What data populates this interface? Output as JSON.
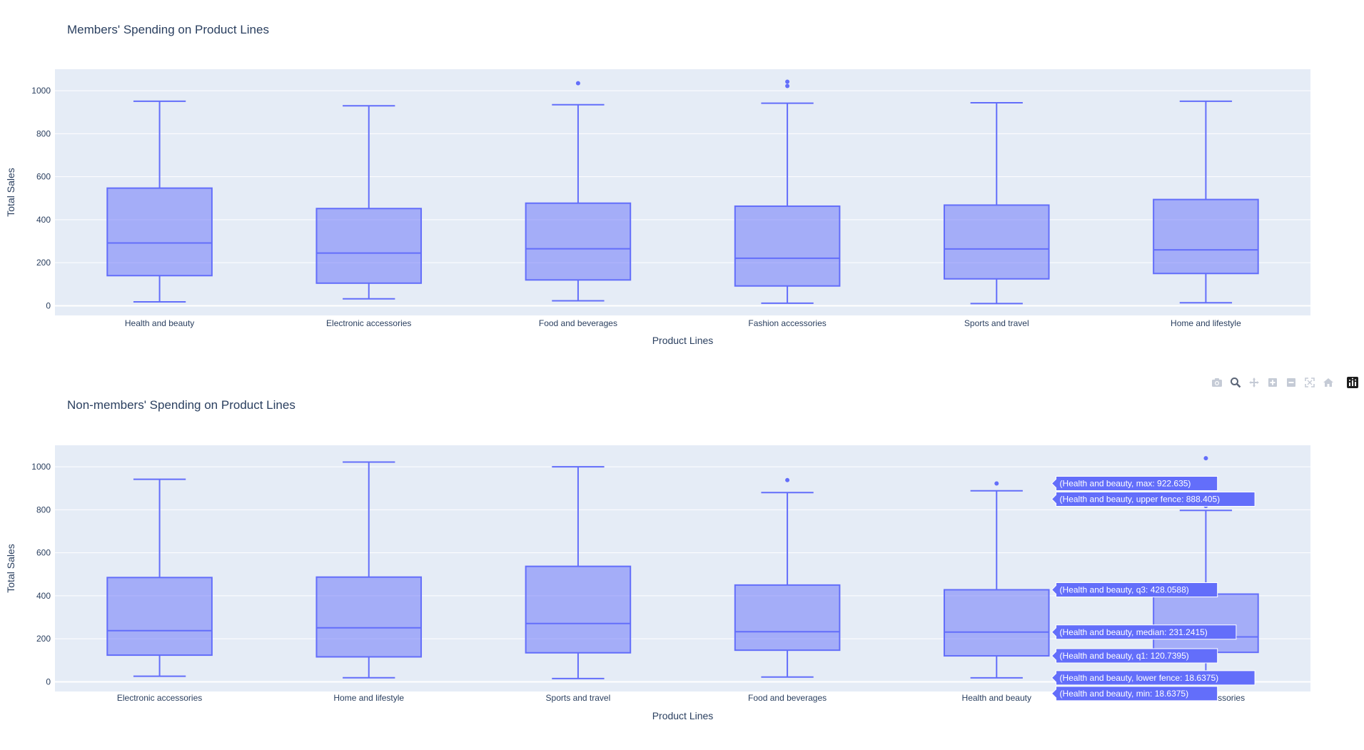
{
  "colors": {
    "box_line": "#636efa",
    "box_fill": "rgba(99,110,250,0.5)",
    "plot_bg": "#e5ecf6",
    "grid": "#ffffff",
    "text": "#2a3f5f",
    "hover_text": "#ffffff"
  },
  "toolbar": {
    "icons": [
      "camera-icon",
      "zoom-icon",
      "pan-icon",
      "zoom-in-icon",
      "zoom-out-icon",
      "autoscale-icon",
      "reset-axes-icon",
      "plotly-logo-icon"
    ]
  },
  "chart_data": [
    {
      "type": "box",
      "title": "Members' Spending on Product Lines",
      "xlabel": "Product Lines",
      "ylabel": "Total Sales",
      "ylim": [
        -45,
        1100
      ],
      "yticks": [
        0,
        200,
        400,
        600,
        800,
        1000
      ],
      "grid": true,
      "categories": [
        "Health and beauty",
        "Electronic accessories",
        "Food and beverages",
        "Fashion accessories",
        "Sports and travel",
        "Home and lifestyle"
      ],
      "boxes": [
        {
          "category": "Health and beauty",
          "min": 18,
          "q1": 140,
          "median": 292,
          "q3": 547,
          "max": 951,
          "outliers": []
        },
        {
          "category": "Electronic accessories",
          "min": 32,
          "q1": 105,
          "median": 245,
          "q3": 452,
          "max": 930,
          "outliers": []
        },
        {
          "category": "Food and beverages",
          "min": 23,
          "q1": 120,
          "median": 265,
          "q3": 477,
          "max": 935,
          "outliers": [
            1035
          ]
        },
        {
          "category": "Fashion accessories",
          "min": 12,
          "q1": 92,
          "median": 221,
          "q3": 463,
          "max": 942,
          "outliers": [
            1022,
            1042
          ]
        },
        {
          "category": "Sports and travel",
          "min": 10,
          "q1": 125,
          "median": 264,
          "q3": 468,
          "max": 944,
          "outliers": []
        },
        {
          "category": "Home and lifestyle",
          "min": 14,
          "q1": 150,
          "median": 260,
          "q3": 494,
          "max": 951,
          "outliers": []
        }
      ]
    },
    {
      "type": "box",
      "title": "Non-members' Spending on Product Lines",
      "xlabel": "Product Lines",
      "ylabel": "Total Sales",
      "ylim": [
        -45,
        1100
      ],
      "yticks": [
        0,
        200,
        400,
        600,
        800,
        1000
      ],
      "grid": true,
      "categories": [
        "Electronic accessories",
        "Home and lifestyle",
        "Sports and travel",
        "Food and beverages",
        "Health and beauty",
        "Fashion accessories"
      ],
      "boxes": [
        {
          "category": "Electronic accessories",
          "min": 26,
          "q1": 124,
          "median": 238,
          "q3": 485,
          "max": 942,
          "outliers": []
        },
        {
          "category": "Home and lifestyle",
          "min": 19,
          "q1": 116,
          "median": 251,
          "q3": 487,
          "max": 1022,
          "outliers": []
        },
        {
          "category": "Sports and travel",
          "min": 15,
          "q1": 135,
          "median": 271,
          "q3": 537,
          "max": 1000,
          "outliers": []
        },
        {
          "category": "Food and beverages",
          "min": 22,
          "q1": 147,
          "median": 233,
          "q3": 450,
          "max": 880,
          "outliers": [
            938
          ]
        },
        {
          "category": "Health and beauty",
          "min": 18.6375,
          "q1": 120.7395,
          "median": 231.2415,
          "q3": 428.0588,
          "max": 888.405,
          "outliers": [
            922.635
          ]
        },
        {
          "category": "Fashion accessories",
          "min": 12,
          "q1": 137,
          "median": 209,
          "q3": 408,
          "max": 797,
          "outliers": [
            818,
            1040
          ]
        }
      ],
      "hover": {
        "category": "Health and beauty",
        "labels": [
          "(Health and beauty, max: 922.635)",
          "(Health and beauty, upper fence: 888.405)",
          "(Health and beauty, q3: 428.0588)",
          "(Health and beauty, median: 231.2415)",
          "(Health and beauty, q1: 120.7395)",
          "(Health and beauty, lower fence: 18.6375)",
          "(Health and beauty, min: 18.6375)"
        ]
      }
    }
  ]
}
